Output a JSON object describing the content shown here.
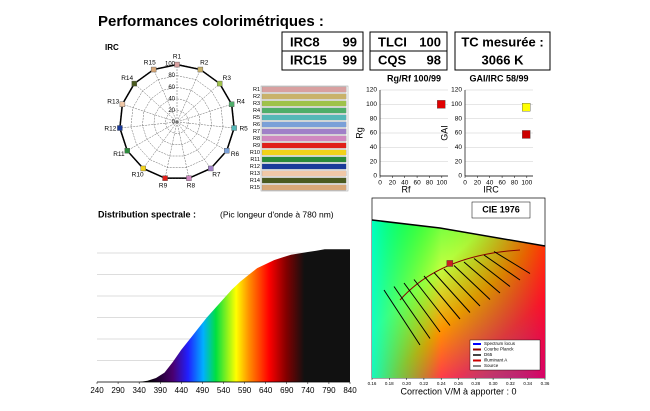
{
  "title": "Performances colorimétriques :",
  "boxes": [
    {
      "rows": [
        {
          "label": "IRC8",
          "value": 99
        },
        {
          "label": "IRC15",
          "value": 99
        }
      ]
    },
    {
      "rows": [
        {
          "label": "TLCI",
          "value": 100
        },
        {
          "label": "CQS",
          "value": 98
        }
      ]
    },
    {
      "lines": [
        "TC mesurée :",
        "3066 K"
      ]
    }
  ],
  "chart_data": [
    {
      "type": "radar",
      "title": "IRC",
      "categories": [
        "R1",
        "R2",
        "R3",
        "R4",
        "R5",
        "R6",
        "R7",
        "R8",
        "R9",
        "R10",
        "R11",
        "R12",
        "R13",
        "R14",
        "R15"
      ],
      "values": [
        99,
        99,
        99,
        99,
        99,
        99,
        99,
        99,
        99,
        99,
        99,
        99,
        99,
        99,
        99
      ],
      "colors": [
        "#d8a0a0",
        "#c9b26a",
        "#9fc24a",
        "#4fae6a",
        "#55b8b8",
        "#7aa0d8",
        "#a080c8",
        "#d088c0",
        "#e0201a",
        "#f2d21a",
        "#2a8a3a",
        "#1a3a9a",
        "#f0c8a8",
        "#4a5a20",
        "#d8a878"
      ],
      "rlim": [
        0,
        100
      ],
      "rticks": [
        0,
        20,
        40,
        60,
        80,
        100
      ]
    },
    {
      "type": "barh",
      "categories": [
        "R1",
        "R2",
        "R3",
        "R4",
        "R5",
        "R6",
        "R7",
        "R8",
        "R9",
        "R10",
        "R11",
        "R12",
        "R13",
        "R14",
        "R15"
      ],
      "values": [
        99,
        99,
        99,
        99,
        99,
        99,
        99,
        99,
        99,
        99,
        99,
        99,
        99,
        99,
        99
      ],
      "colors": [
        "#d8a0a0",
        "#c9b26a",
        "#9fc24a",
        "#4fae6a",
        "#55b8b8",
        "#7aa0d8",
        "#a080c8",
        "#d088c0",
        "#e0201a",
        "#f2d21a",
        "#2a8a3a",
        "#1a3a9a",
        "#f0c8a8",
        "#4a5a20",
        "#d8a878"
      ],
      "xlim": [
        0,
        100
      ]
    },
    {
      "type": "scatter",
      "title": "Rg/Rf 100/99",
      "xlabel": "Rf",
      "ylabel": "Rg",
      "xlim": [
        0,
        110
      ],
      "xticks": [
        0,
        20,
        40,
        60,
        80,
        100
      ],
      "ylim": [
        0,
        120
      ],
      "yticks": [
        0,
        20,
        40,
        60,
        80,
        100,
        120
      ],
      "points": [
        {
          "x": 99,
          "y": 100,
          "color": "#e00000"
        }
      ]
    },
    {
      "type": "scatter",
      "title": "GAI/IRC 58/99",
      "xlabel": "IRC",
      "ylabel": "GAI",
      "xlim": [
        0,
        110
      ],
      "xticks": [
        0,
        20,
        40,
        60,
        80,
        100
      ],
      "ylim": [
        0,
        120
      ],
      "yticks": [
        0,
        20,
        40,
        60,
        80,
        100,
        120
      ],
      "points": [
        {
          "x": 99,
          "y": 96,
          "color": "#ffff00"
        },
        {
          "x": 99,
          "y": 58,
          "color": "#cc0000"
        }
      ]
    },
    {
      "type": "area",
      "title": "Distribution spectrale :",
      "subtitle": "(Pic longeur d'onde à 780 nm)",
      "x": [
        240,
        260,
        280,
        300,
        320,
        340,
        360,
        380,
        400,
        420,
        440,
        460,
        480,
        500,
        520,
        540,
        560,
        580,
        600,
        620,
        640,
        660,
        680,
        700,
        720,
        740,
        760,
        780,
        800,
        820,
        840
      ],
      "values": [
        0,
        0,
        0,
        0,
        0,
        0,
        0.01,
        0.03,
        0.07,
        0.15,
        0.24,
        0.32,
        0.4,
        0.48,
        0.55,
        0.62,
        0.69,
        0.75,
        0.8,
        0.85,
        0.88,
        0.91,
        0.93,
        0.95,
        0.96,
        0.97,
        0.98,
        0.99,
        0.99,
        0.99,
        0.99
      ],
      "xlim": [
        240,
        840
      ],
      "ylim": [
        0,
        1
      ],
      "xticks": [
        240,
        290,
        340,
        390,
        440,
        490,
        540,
        590,
        640,
        690,
        740,
        790,
        840
      ]
    },
    {
      "type": "cie",
      "title": "CIE 1976",
      "xlabel": "Correction V/M à apporter : 0",
      "xlim": [
        0.16,
        0.36
      ],
      "xticks": [
        0.16,
        0.18,
        {
          "value": 0.2,
          "label": "0.20"
        },
        0.22,
        0.24,
        0.26,
        0.28,
        {
          "value": 0.3,
          "label": "0.30"
        },
        0.32,
        0.34,
        0.36
      ],
      "ylim": [
        0.38,
        0.6
      ],
      "points": [
        {
          "x": 0.25,
          "y": 0.52,
          "color": "#cc2020"
        }
      ],
      "legend": [
        "Spectrum locus",
        "Courbe Planck",
        "D65",
        "Illuminant A",
        "Source"
      ]
    }
  ]
}
